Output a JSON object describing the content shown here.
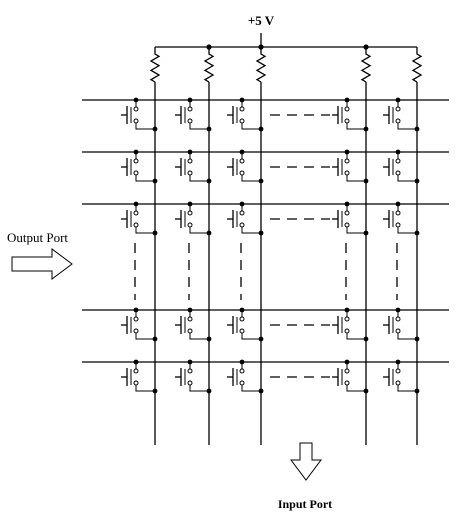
{
  "diagram": {
    "supply_label": "+5 V",
    "output_port_label": "Output Port",
    "input_port_label": "Input Port",
    "rows_drawn": 5,
    "columns_drawn": 5,
    "rows_hidden_between": "dashed vertical ellipsis between row 3 and row 4",
    "columns_hidden_between": "dashed horizontal ellipsis between column 3 and column 4",
    "components": {
      "pull_up": "resistor",
      "key": "push-button switch"
    },
    "colors": {
      "ink": "#000000",
      "background": "#ffffff"
    }
  }
}
